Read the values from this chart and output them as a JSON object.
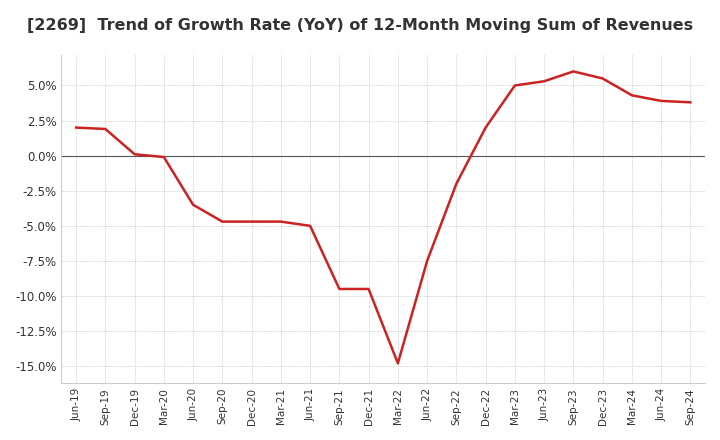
{
  "title": "[2269]  Trend of Growth Rate (YoY) of 12-Month Moving Sum of Revenues",
  "title_fontsize": 11.5,
  "line_color": "#cc2222",
  "background_color": "#ffffff",
  "plot_bg_color": "#ffffff",
  "ylim": [
    -16.2,
    7.2
  ],
  "yticks": [
    5.0,
    2.5,
    0.0,
    -2.5,
    -5.0,
    -7.5,
    -10.0,
    -12.5,
    -15.0
  ],
  "values": [
    2.0,
    1.9,
    0.1,
    -0.1,
    -3.5,
    -4.7,
    -4.7,
    -4.7,
    -5.0,
    -9.5,
    -9.5,
    -14.8,
    -7.5,
    -2.0,
    2.0,
    5.0,
    5.3,
    6.0,
    5.5,
    4.3,
    3.9,
    3.8
  ],
  "xtick_labels": [
    "Jun-19",
    "Sep-19",
    "Dec-19",
    "Mar-20",
    "Jun-20",
    "Sep-20",
    "Dec-20",
    "Mar-21",
    "Jun-21",
    "Sep-21",
    "Dec-21",
    "Mar-22",
    "Jun-22",
    "Sep-22",
    "Dec-22",
    "Mar-23",
    "Jun-23",
    "Sep-23",
    "Dec-23",
    "Mar-24",
    "Jun-24",
    "Sep-24"
  ]
}
